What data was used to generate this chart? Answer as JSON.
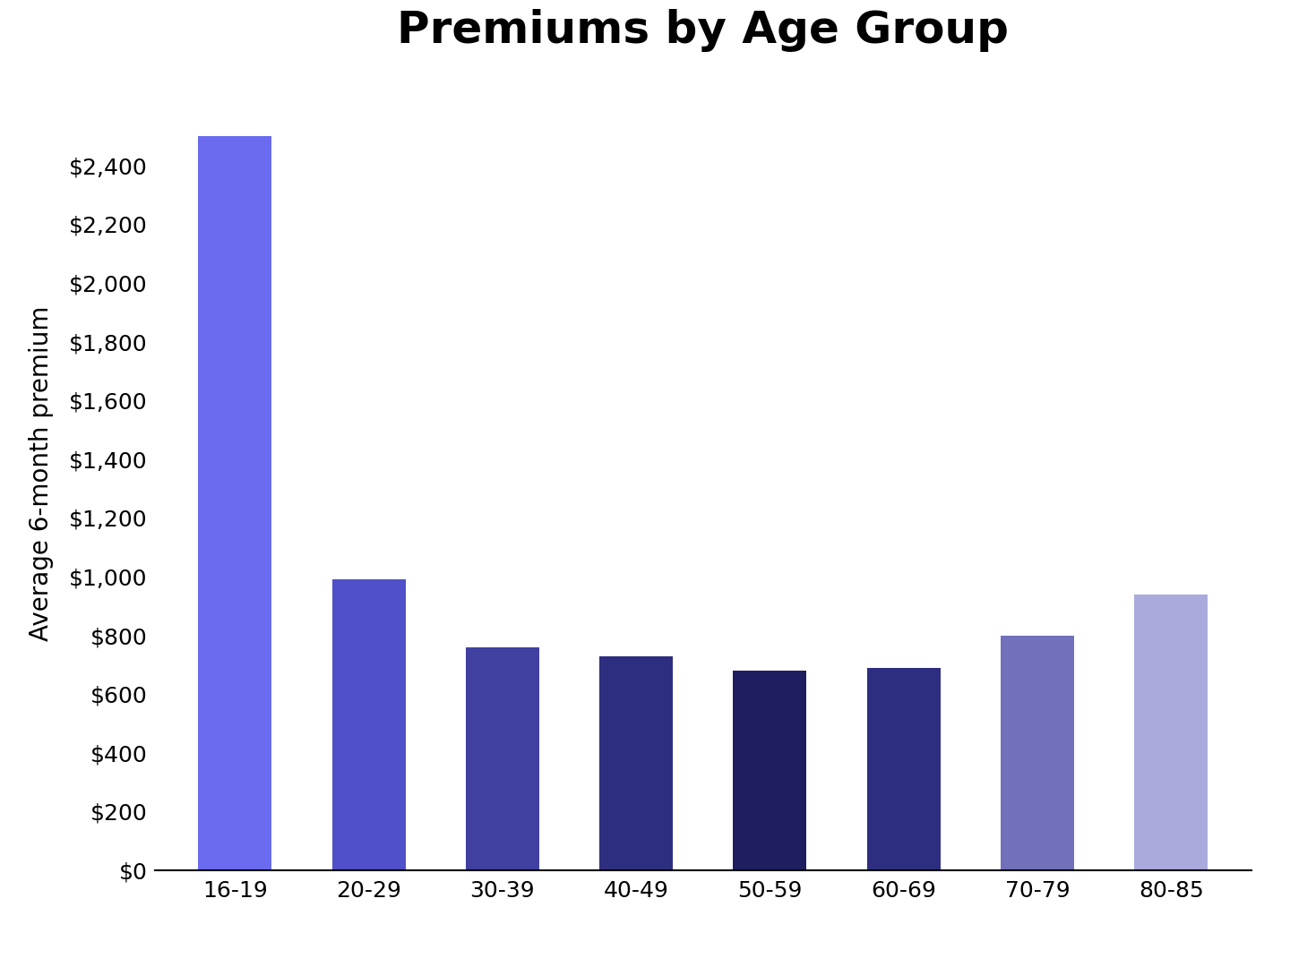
{
  "categories": [
    "16-19",
    "20-29",
    "30-39",
    "40-49",
    "50-59",
    "60-69",
    "70-79",
    "80-85"
  ],
  "values": [
    2500,
    990,
    760,
    730,
    680,
    690,
    800,
    940
  ],
  "bar_colors": [
    "#6B6BF0",
    "#5050C8",
    "#4040A0",
    "#2E2E80",
    "#1E1E60",
    "#2E2E80",
    "#7070BB",
    "#AAAADD"
  ],
  "title": "Premiums by Age Group",
  "ylabel": "Average 6-month premium",
  "xlabel": "",
  "ylim": [
    0,
    2700
  ],
  "yticks": [
    0,
    200,
    400,
    600,
    800,
    1000,
    1200,
    1400,
    1600,
    1800,
    2000,
    2200,
    2400
  ],
  "title_fontsize": 36,
  "label_fontsize": 20,
  "tick_fontsize": 18,
  "background_color": "#ffffff"
}
